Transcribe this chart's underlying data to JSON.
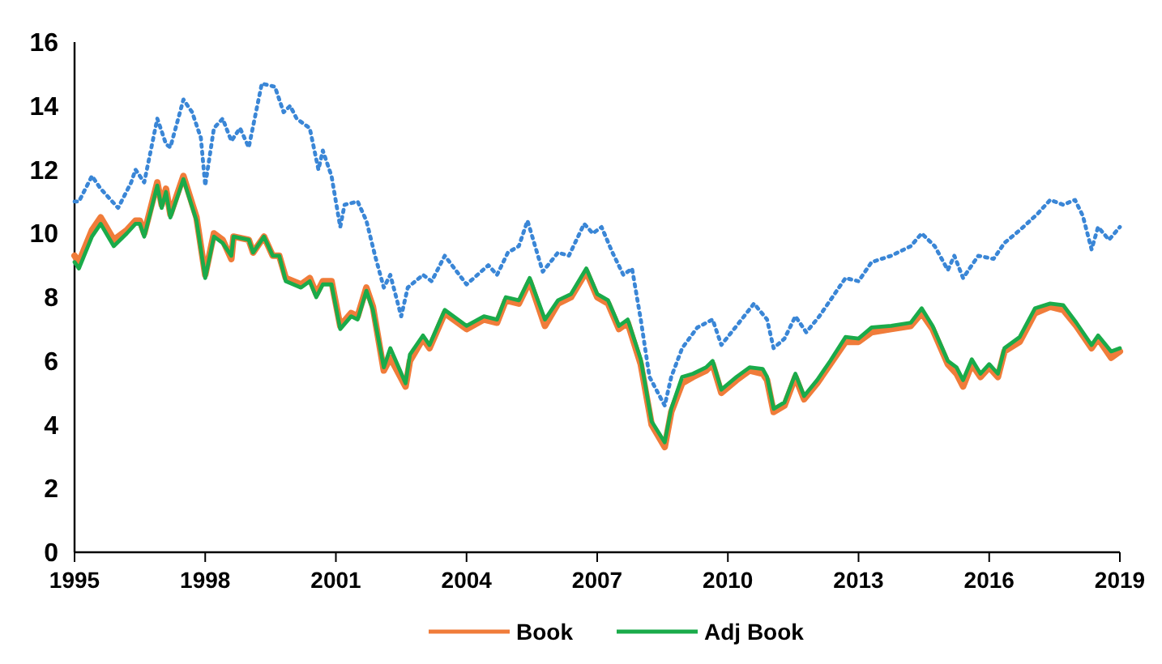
{
  "chart_data": {
    "type": "line",
    "xlim": [
      1995,
      2019
    ],
    "xticks": [
      1995,
      1998,
      2001,
      2004,
      2007,
      2010,
      2013,
      2016,
      2019
    ],
    "ylim": [
      0,
      16
    ],
    "yticks": [
      0,
      2,
      4,
      6,
      8,
      10,
      12,
      14,
      16
    ],
    "grid": false,
    "legend": "bottom",
    "marker": "none",
    "series": [
      {
        "color": "#3a86d6",
        "line_style": "dotted",
        "x": [
          1995.0,
          1995.1,
          1995.4,
          1995.6,
          1996.0,
          1996.3,
          1996.4,
          1996.6,
          1996.9,
          1997.1,
          1997.2,
          1997.5,
          1997.7,
          1997.9,
          1998.0,
          1998.2,
          1998.4,
          1998.6,
          1998.8,
          1999.0,
          1999.3,
          1999.6,
          1999.8,
          1999.95,
          2000.1,
          2000.4,
          2000.6,
          2000.7,
          2000.9,
          2001.1,
          2001.2,
          2001.5,
          2001.7,
          2001.9,
          2002.1,
          2002.25,
          2002.5,
          2002.65,
          2003.0,
          2003.2,
          2003.5,
          2004.0,
          2004.5,
          2004.7,
          2004.95,
          2005.2,
          2005.4,
          2005.75,
          2006.1,
          2006.35,
          2006.7,
          2006.9,
          2007.1,
          2007.35,
          2007.6,
          2007.8,
          2008.0,
          2008.2,
          2008.55,
          2008.7,
          2008.95,
          2009.3,
          2009.65,
          2009.85,
          2010.2,
          2010.6,
          2010.9,
          2011.05,
          2011.3,
          2011.55,
          2011.8,
          2012.1,
          2012.4,
          2012.7,
          2013.0,
          2013.3,
          2013.75,
          2014.2,
          2014.45,
          2014.75,
          2015.05,
          2015.2,
          2015.4,
          2015.75,
          2016.1,
          2016.35,
          2016.7,
          2017.1,
          2017.4,
          2017.7,
          2017.97,
          2018.15,
          2018.35,
          2018.5,
          2018.75,
          2019.0
        ],
        "values": [
          11.0,
          11.0,
          11.8,
          11.4,
          10.8,
          11.6,
          12.0,
          11.6,
          13.6,
          12.8,
          12.7,
          14.2,
          13.8,
          13.0,
          11.5,
          13.3,
          13.6,
          12.9,
          13.3,
          12.7,
          14.7,
          14.6,
          13.8,
          14.0,
          13.6,
          13.3,
          12.0,
          12.6,
          11.8,
          10.2,
          10.9,
          11.0,
          10.4,
          9.3,
          8.3,
          8.7,
          7.4,
          8.3,
          8.7,
          8.5,
          9.3,
          8.4,
          9.0,
          8.7,
          9.4,
          9.6,
          10.4,
          8.8,
          9.4,
          9.3,
          10.3,
          10.0,
          10.2,
          9.4,
          8.7,
          8.9,
          7.3,
          5.5,
          4.6,
          5.5,
          6.4,
          7.05,
          7.3,
          6.5,
          7.1,
          7.8,
          7.3,
          6.4,
          6.7,
          7.4,
          6.9,
          7.4,
          8.0,
          8.6,
          8.5,
          9.1,
          9.3,
          9.6,
          10.0,
          9.6,
          8.85,
          9.3,
          8.6,
          9.3,
          9.2,
          9.7,
          10.1,
          10.6,
          11.05,
          10.9,
          11.05,
          10.55,
          9.5,
          10.2,
          9.8,
          10.2
        ]
      },
      {
        "name": "Book",
        "color": "#f07c3a",
        "line_style": "solid",
        "x": [
          1995.0,
          1995.1,
          1995.4,
          1995.6,
          1995.9,
          1996.2,
          1996.4,
          1996.5,
          1996.6,
          1996.9,
          1997.0,
          1997.1,
          1997.2,
          1997.5,
          1997.8,
          1998.0,
          1998.2,
          1998.4,
          1998.6,
          1998.65,
          1999.0,
          1999.1,
          1999.35,
          1999.55,
          1999.7,
          1999.85,
          2000.2,
          2000.4,
          2000.55,
          2000.7,
          2000.9,
          2001.1,
          2001.35,
          2001.5,
          2001.7,
          2001.85,
          2002.1,
          2002.25,
          2002.6,
          2002.7,
          2003.0,
          2003.15,
          2003.5,
          2004.0,
          2004.4,
          2004.7,
          2004.9,
          2005.2,
          2005.45,
          2005.8,
          2006.1,
          2006.4,
          2006.75,
          2007.0,
          2007.25,
          2007.5,
          2007.7,
          2008.0,
          2008.25,
          2008.55,
          2008.7,
          2008.95,
          2009.2,
          2009.5,
          2009.65,
          2009.85,
          2010.2,
          2010.5,
          2010.8,
          2010.9,
          2011.05,
          2011.3,
          2011.55,
          2011.75,
          2012.05,
          2012.35,
          2012.7,
          2013.0,
          2013.3,
          2013.75,
          2014.2,
          2014.45,
          2014.7,
          2015.05,
          2015.25,
          2015.4,
          2015.6,
          2015.8,
          2016.0,
          2016.2,
          2016.35,
          2016.7,
          2017.05,
          2017.4,
          2017.7,
          2018.0,
          2018.35,
          2018.5,
          2018.8,
          2019.0
        ],
        "values": [
          9.3,
          9.1,
          10.1,
          10.5,
          9.8,
          10.1,
          10.4,
          10.4,
          10.0,
          11.6,
          10.9,
          11.4,
          10.6,
          11.8,
          10.5,
          8.7,
          10.0,
          9.8,
          9.2,
          9.9,
          9.8,
          9.4,
          9.9,
          9.3,
          9.3,
          8.6,
          8.4,
          8.6,
          8.1,
          8.5,
          8.5,
          7.1,
          7.5,
          7.4,
          8.3,
          7.7,
          5.7,
          6.1,
          5.2,
          6.0,
          6.7,
          6.4,
          7.5,
          7.0,
          7.3,
          7.2,
          7.9,
          7.8,
          8.5,
          7.1,
          7.8,
          8.0,
          8.8,
          8.0,
          7.8,
          7.0,
          7.2,
          5.9,
          4.0,
          3.3,
          4.4,
          5.3,
          5.5,
          5.7,
          5.9,
          5.0,
          5.4,
          5.7,
          5.6,
          5.4,
          4.4,
          4.6,
          5.5,
          4.8,
          5.3,
          5.9,
          6.6,
          6.6,
          6.9,
          7.0,
          7.1,
          7.5,
          7.0,
          5.9,
          5.6,
          5.2,
          5.9,
          5.5,
          5.8,
          5.5,
          6.3,
          6.6,
          7.5,
          7.7,
          7.6,
          7.1,
          6.4,
          6.7,
          6.1,
          6.3
        ]
      },
      {
        "name": "Adj Book",
        "color": "#1aab4a",
        "line_style": "solid",
        "x": [
          1995.0,
          1995.1,
          1995.4,
          1995.6,
          1995.9,
          1996.2,
          1996.4,
          1996.5,
          1996.6,
          1996.9,
          1997.0,
          1997.1,
          1997.2,
          1997.5,
          1997.8,
          1998.0,
          1998.2,
          1998.4,
          1998.6,
          1998.65,
          1999.0,
          1999.1,
          1999.35,
          1999.55,
          1999.7,
          1999.85,
          2000.2,
          2000.4,
          2000.55,
          2000.7,
          2000.9,
          2001.1,
          2001.35,
          2001.5,
          2001.7,
          2001.85,
          2002.1,
          2002.25,
          2002.6,
          2002.7,
          2003.0,
          2003.15,
          2003.5,
          2004.0,
          2004.4,
          2004.7,
          2004.9,
          2005.2,
          2005.45,
          2005.8,
          2006.1,
          2006.4,
          2006.75,
          2007.0,
          2007.25,
          2007.5,
          2007.7,
          2008.0,
          2008.25,
          2008.55,
          2008.7,
          2008.95,
          2009.2,
          2009.5,
          2009.65,
          2009.85,
          2010.2,
          2010.5,
          2010.8,
          2010.9,
          2011.05,
          2011.3,
          2011.55,
          2011.75,
          2012.05,
          2012.35,
          2012.7,
          2013.0,
          2013.3,
          2013.75,
          2014.2,
          2014.45,
          2014.7,
          2015.05,
          2015.25,
          2015.4,
          2015.6,
          2015.8,
          2016.0,
          2016.2,
          2016.35,
          2016.7,
          2017.05,
          2017.4,
          2017.7,
          2018.0,
          2018.35,
          2018.5,
          2018.8,
          2019.0
        ],
        "values": [
          9.1,
          8.9,
          9.9,
          10.3,
          9.6,
          10.0,
          10.3,
          10.3,
          9.9,
          11.5,
          10.8,
          11.3,
          10.5,
          11.7,
          10.4,
          8.6,
          9.9,
          9.7,
          9.3,
          9.9,
          9.8,
          9.4,
          9.9,
          9.3,
          9.3,
          8.5,
          8.3,
          8.5,
          8.0,
          8.4,
          8.4,
          7.0,
          7.4,
          7.3,
          8.2,
          7.6,
          5.8,
          6.4,
          5.3,
          6.2,
          6.8,
          6.5,
          7.6,
          7.1,
          7.4,
          7.3,
          8.0,
          7.9,
          8.6,
          7.3,
          7.9,
          8.1,
          8.9,
          8.1,
          7.9,
          7.1,
          7.3,
          6.05,
          4.1,
          3.45,
          4.5,
          5.5,
          5.6,
          5.8,
          6.0,
          5.1,
          5.5,
          5.8,
          5.75,
          5.5,
          4.5,
          4.7,
          5.6,
          4.9,
          5.4,
          6.0,
          6.75,
          6.7,
          7.05,
          7.1,
          7.2,
          7.65,
          7.1,
          6.0,
          5.8,
          5.4,
          6.05,
          5.6,
          5.9,
          5.6,
          6.4,
          6.75,
          7.65,
          7.8,
          7.75,
          7.2,
          6.5,
          6.8,
          6.3,
          6.4
        ]
      }
    ]
  }
}
